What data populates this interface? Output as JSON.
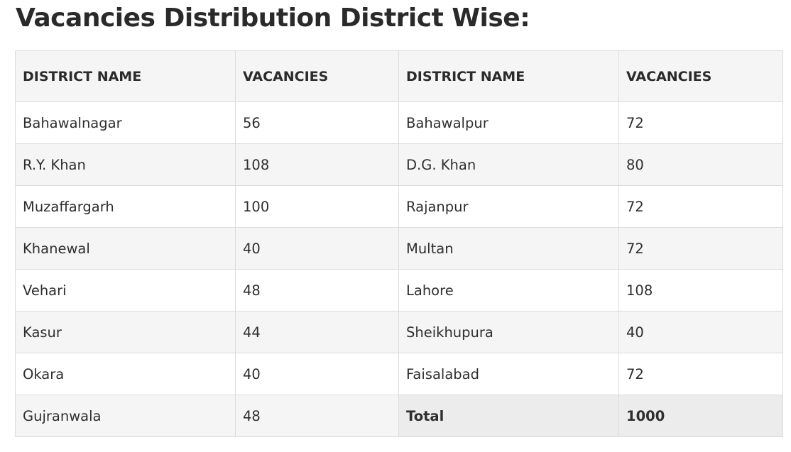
{
  "page": {
    "title": "Vacancies Distribution District Wise:"
  },
  "table": {
    "headers": [
      "DISTRICT NAME",
      "VACANCIES",
      "DISTRICT NAME",
      "VACANCIES"
    ],
    "rows": [
      [
        "Bahawalnagar",
        "56",
        "Bahawalpur",
        "72"
      ],
      [
        "R.Y. Khan",
        "108",
        "D.G. Khan",
        "80"
      ],
      [
        "Muzaffargarh",
        "100",
        "Rajanpur",
        "72"
      ],
      [
        "Khanewal",
        "40",
        "Multan",
        "72"
      ],
      [
        "Vehari",
        "48",
        "Lahore",
        "108"
      ],
      [
        "Kasur",
        "44",
        "Sheikhupura",
        "40"
      ],
      [
        "Okara",
        "40",
        "Faisalabad",
        "72"
      ],
      [
        "Gujranwala",
        "48",
        "Total",
        "1000"
      ]
    ]
  },
  "colors": {
    "header_bg": "#f5f5f5",
    "stripe_bg": "#f5f5f5",
    "total_bg": "#ececec",
    "border": "#dcdcdc",
    "text": "#2b2b2b"
  }
}
